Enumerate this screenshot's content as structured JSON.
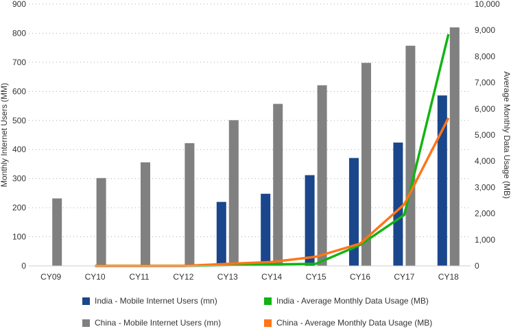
{
  "chart_data": {
    "type": "bar+line",
    "categories": [
      "CY09",
      "CY10",
      "CY11",
      "CY12",
      "CY13",
      "CY14",
      "CY15",
      "CY16",
      "CY17",
      "CY18"
    ],
    "ylabel": "Monthly Internet Users (MM)",
    "y2label": "Average Monthly Data Usage (MB)",
    "ylim": [
      0,
      900
    ],
    "y2lim": [
      0,
      10000
    ],
    "yticks": [
      0,
      100,
      200,
      300,
      400,
      500,
      600,
      700,
      800,
      900
    ],
    "y2ticks": [
      "0",
      "1,000",
      "2,000",
      "3,000",
      "4,000",
      "5,000",
      "6,000",
      "7,000",
      "8,000",
      "9,000",
      "10,000"
    ],
    "grid": true,
    "legend_position": "bottom",
    "series": [
      {
        "name": "India - Mobile Internet Users (mn)",
        "type": "bar",
        "axis": "left",
        "color": "#1a468c",
        "values": [
          null,
          null,
          null,
          null,
          220,
          248,
          312,
          371,
          424,
          586
        ]
      },
      {
        "name": "China - Mobile Internet Users (mn)",
        "type": "bar",
        "axis": "left",
        "color": "#808080",
        "values": [
          232,
          302,
          356,
          422,
          501,
          557,
          621,
          698,
          757,
          820
        ]
      },
      {
        "name": "India - Average Monthly Data Usage (MB)",
        "type": "line",
        "axis": "right",
        "color": "#13b313",
        "values": [
          null,
          0,
          0,
          0,
          30,
          60,
          80,
          800,
          1950,
          8850
        ]
      },
      {
        "name": "China - Average Monthly Data Usage (MB)",
        "type": "line",
        "axis": "right",
        "color": "#ff7518",
        "values": [
          null,
          0,
          0,
          0,
          80,
          150,
          350,
          850,
          2350,
          5650
        ]
      }
    ]
  }
}
